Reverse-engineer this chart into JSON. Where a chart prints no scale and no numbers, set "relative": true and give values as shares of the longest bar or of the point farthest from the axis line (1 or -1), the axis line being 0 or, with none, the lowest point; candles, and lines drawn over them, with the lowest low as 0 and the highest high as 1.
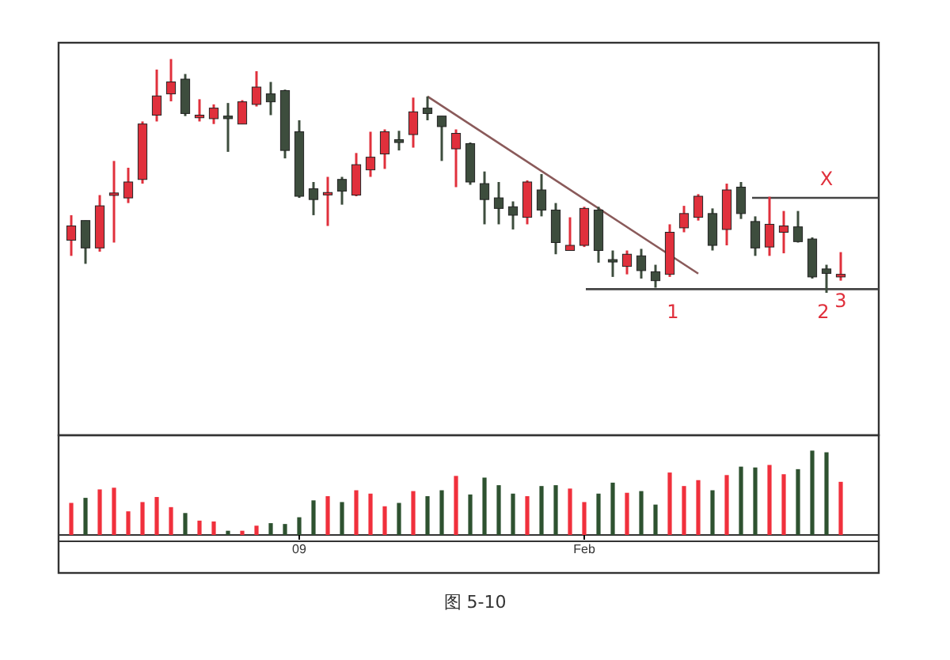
{
  "chart_data": [
    {
      "type": "candlestick",
      "relative": true,
      "tick_labels": false,
      "categories": [
        null,
        null,
        null,
        null,
        null,
        null,
        null,
        null,
        null,
        null,
        null,
        null,
        null,
        null,
        null,
        null,
        null,
        null,
        null,
        null,
        null,
        null,
        null,
        null,
        null,
        null,
        null,
        null,
        null,
        null,
        null,
        null,
        null,
        null,
        null,
        null,
        null,
        null,
        null,
        null,
        null,
        null,
        null,
        null,
        null,
        null,
        null,
        null,
        null,
        null,
        null,
        null,
        null,
        null,
        null
      ],
      "ohlc": [
        [
          0.225,
          0.332,
          0.158,
          0.286
        ],
        [
          0.309,
          0.309,
          0.124,
          0.192
        ],
        [
          0.192,
          0.418,
          0.176,
          0.372
        ],
        [
          0.418,
          0.564,
          0.215,
          0.427
        ],
        [
          0.406,
          0.535,
          0.384,
          0.474
        ],
        [
          0.485,
          0.733,
          0.467,
          0.722
        ],
        [
          0.76,
          0.955,
          0.733,
          0.842
        ],
        [
          0.851,
          1,
          0.819,
          0.902
        ],
        [
          0.914,
          0.936,
          0.756,
          0.767
        ],
        [
          0.749,
          0.828,
          0.733,
          0.76
        ],
        [
          0.745,
          0.806,
          0.722,
          0.79
        ],
        [
          0.756,
          0.812,
          0.603,
          0.745
        ],
        [
          0.722,
          0.824,
          0.722,
          0.817
        ],
        [
          0.806,
          0.948,
          0.797,
          0.88
        ],
        [
          0.851,
          0.902,
          0.76,
          0.817
        ],
        [
          0.865,
          0.869,
          0.575,
          0.609
        ],
        [
          0.689,
          0.738,
          0.406,
          0.413
        ],
        [
          0.445,
          0.474,
          0.332,
          0.399
        ],
        [
          0.422,
          0.496,
          0.286,
          0.429
        ],
        [
          0.485,
          0.496,
          0.377,
          0.435
        ],
        [
          0.418,
          0.598,
          0.413,
          0.548
        ],
        [
          0.526,
          0.689,
          0.496,
          0.58
        ],
        [
          0.594,
          0.699,
          0.53,
          0.689
        ],
        [
          0.655,
          0.693,
          0.609,
          0.643
        ],
        [
          0.677,
          0.835,
          0.621,
          0.774
        ],
        [
          0.79,
          0.84,
          0.738,
          0.767
        ],
        [
          0.756,
          0.756,
          0.564,
          0.711
        ],
        [
          0.616,
          0.699,
          0.452,
          0.682
        ],
        [
          0.638,
          0.643,
          0.462,
          0.474
        ],
        [
          0.467,
          0.519,
          0.293,
          0.399
        ],
        [
          0.406,
          0.474,
          0.293,
          0.361
        ],
        [
          0.368,
          0.391,
          0.271,
          0.332
        ],
        [
          0.323,
          0.481,
          0.293,
          0.474
        ],
        [
          0.44,
          0.508,
          0.327,
          0.354
        ],
        [
          0.354,
          0.384,
          0.165,
          0.215
        ],
        [
          0.181,
          0.323,
          0.181,
          0.203
        ],
        [
          0.203,
          0.368,
          0.196,
          0.361
        ],
        [
          0.354,
          0.368,
          0.129,
          0.181
        ],
        [
          0.142,
          0.181,
          0.068,
          0.133
        ],
        [
          0.113,
          0.181,
          0.079,
          0.165
        ],
        [
          0.158,
          0.188,
          0.061,
          0.095
        ],
        [
          0.09,
          0.12,
          0.022,
          0.052
        ],
        [
          0.079,
          0.293,
          0.068,
          0.259
        ],
        [
          0.278,
          0.372,
          0.259,
          0.339
        ],
        [
          0.323,
          0.422,
          0.309,
          0.413
        ],
        [
          0.339,
          0.361,
          0.181,
          0.203
        ],
        [
          0.271,
          0.467,
          0.203,
          0.44
        ],
        [
          0.452,
          0.474,
          0.316,
          0.339
        ],
        [
          0.305,
          0.327,
          0.158,
          0.192
        ],
        [
          0.196,
          0.411,
          0.158,
          0.293
        ],
        [
          0.259,
          0.35,
          0.169,
          0.286
        ],
        [
          0.282,
          0.35,
          0.215,
          0.219
        ],
        [
          0.23,
          0.237,
          0.061,
          0.068
        ],
        [
          0.102,
          0.12,
          0,
          0.083
        ],
        [
          0.068,
          0.174,
          0.052,
          0.079
        ]
      ],
      "colors": [
        "#e0303c",
        "#3d4d3d",
        "#e0303c",
        "#e0303c",
        "#e0303c",
        "#e0303c",
        "#e0303c",
        "#e0303c",
        "#3d4d3d",
        "#e0303c",
        "#e0303c",
        "#3d4d3d",
        "#e0303c",
        "#e0303c",
        "#3d4d3d",
        "#3d4d3d",
        "#3d4d3d",
        "#3d4d3d",
        "#e0303c",
        "#3d4d3d",
        "#e0303c",
        "#e0303c",
        "#e0303c",
        "#3d4d3d",
        "#e0303c",
        "#3d4d3d",
        "#3d4d3d",
        "#e0303c",
        "#3d4d3d",
        "#3d4d3d",
        "#3d4d3d",
        "#3d4d3d",
        "#e0303c",
        "#3d4d3d",
        "#3d4d3d",
        "#e0303c",
        "#e0303c",
        "#3d4d3d",
        "#3d4d3d",
        "#e0303c",
        "#3d4d3d",
        "#3d4d3d",
        "#e0303c",
        "#e0303c",
        "#e0303c",
        "#3d4d3d",
        "#e0303c",
        "#3d4d3d",
        "#3d4d3d",
        "#e0303c",
        "#e0303c",
        "#3d4d3d",
        "#3d4d3d",
        "#3d4d3d",
        "#e0303c"
      ],
      "series": [
        {
          "type": "line",
          "color": "#8a5a5a",
          "values": [
            null,
            null,
            null,
            null,
            null,
            null,
            null,
            null,
            null,
            null,
            null,
            null,
            null,
            null,
            null,
            null,
            null,
            null,
            null,
            null,
            null,
            null,
            null,
            null,
            null,
            0.84,
            null,
            null,
            null,
            null,
            null,
            null,
            null,
            null,
            null,
            null,
            null,
            null,
            null,
            null,
            null,
            null,
            null,
            null,
            0.082,
            null,
            null,
            null,
            null,
            null,
            null,
            null,
            null,
            null,
            null
          ]
        }
      ],
      "annotations": [
        "X",
        "1",
        "2",
        "3"
      ]
    },
    {
      "type": "bar",
      "relative": true,
      "tick_labels": "x",
      "categories": [
        null,
        null,
        null,
        null,
        null,
        null,
        null,
        null,
        null,
        null,
        null,
        null,
        null,
        null,
        null,
        null,
        "09",
        null,
        null,
        null,
        null,
        null,
        null,
        null,
        null,
        null,
        null,
        null,
        null,
        null,
        null,
        null,
        null,
        null,
        null,
        null,
        "Feb",
        null,
        null,
        null,
        null,
        null,
        null,
        null,
        null,
        null,
        null,
        null,
        null,
        null,
        null,
        null,
        null,
        null,
        null
      ],
      "values": [
        0.38,
        0.44,
        0.54,
        0.56,
        0.28,
        0.39,
        0.45,
        0.33,
        0.26,
        0.17,
        0.16,
        0.05,
        0.05,
        0.11,
        0.14,
        0.13,
        0.21,
        0.41,
        0.46,
        0.39,
        0.53,
        0.49,
        0.34,
        0.38,
        0.52,
        0.46,
        0.53,
        0.7,
        0.48,
        0.68,
        0.59,
        0.49,
        0.46,
        0.58,
        0.59,
        0.55,
        0.39,
        0.49,
        0.62,
        0.5,
        0.52,
        0.36,
        0.74,
        0.58,
        0.65,
        0.53,
        0.71,
        0.81,
        0.8,
        0.83,
        0.72,
        0.78,
        1,
        0.98,
        0.63
      ],
      "colors": [
        "#f0303c",
        "#2e5230",
        "#f0303c",
        "#f0303c",
        "#f0303c",
        "#f0303c",
        "#f0303c",
        "#f0303c",
        "#2e5230",
        "#f0303c",
        "#f0303c",
        "#2e5230",
        "#f0303c",
        "#f0303c",
        "#2e5230",
        "#2e5230",
        "#2e5230",
        "#2e5230",
        "#f0303c",
        "#2e5230",
        "#f0303c",
        "#f0303c",
        "#f0303c",
        "#2e5230",
        "#f0303c",
        "#2e5230",
        "#2e5230",
        "#f0303c",
        "#2e5230",
        "#2e5230",
        "#2e5230",
        "#2e5230",
        "#f0303c",
        "#2e5230",
        "#2e5230",
        "#f0303c",
        "#f0303c",
        "#2e5230",
        "#2e5230",
        "#f0303c",
        "#2e5230",
        "#2e5230",
        "#f0303c",
        "#f0303c",
        "#f0303c",
        "#2e5230",
        "#f0303c",
        "#2e5230",
        "#2e5230",
        "#f0303c",
        "#f0303c",
        "#2e5230",
        "#2e5230",
        "#2e5230",
        "#f0303c"
      ],
      "annotations": [
        "图 5-10"
      ]
    }
  ]
}
